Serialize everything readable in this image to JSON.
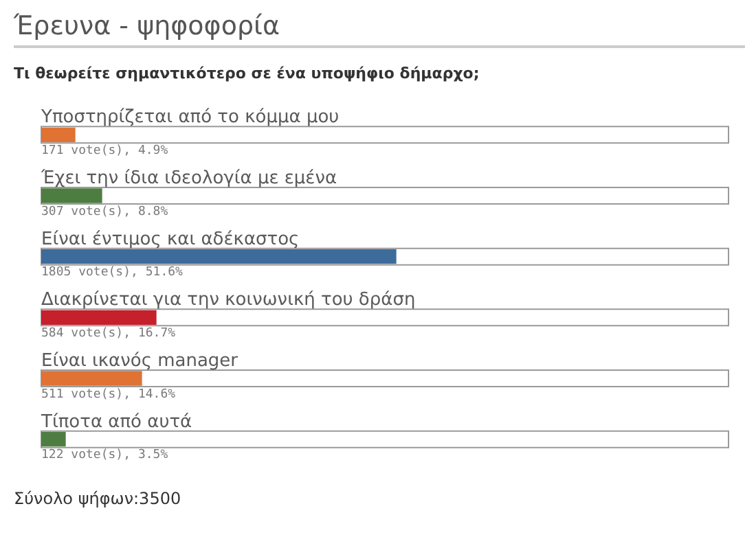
{
  "chart_data": {
    "type": "bar",
    "orientation": "horizontal",
    "title": "Έρευνα - ψηφοφορία",
    "subtitle": "Τι θεωρείτε σημαντικότερο σε ένα υποψήφιο δήμαρχο;",
    "categories": [
      "Υποστηρίζεται από το κόμμα μου",
      "Έχει την ίδια ιδεολογία με εμένα",
      "Είναι έντιμος και αδέκαστος",
      "Διακρίνεται για την κοινωνική του δράση",
      "Είναι ικανός manager",
      "Τίποτα από αυτά"
    ],
    "values": [
      4.9,
      8.8,
      51.6,
      16.7,
      14.6,
      3.5
    ],
    "colors": [
      "#e07234",
      "#4e7d42",
      "#3d6b9b",
      "#c5202b",
      "#e07234",
      "#4e7d42"
    ],
    "value_labels": [
      "171 vote(s), 4.9%",
      "307 vote(s), 8.8%",
      "1805 vote(s), 51.6%",
      "584 vote(s), 16.7%",
      "511 vote(s), 14.6%",
      "122 vote(s), 3.5%"
    ],
    "xlim": [
      0,
      100
    ],
    "annotations": [
      "Σύνολο ψήφων:3500"
    ]
  }
}
